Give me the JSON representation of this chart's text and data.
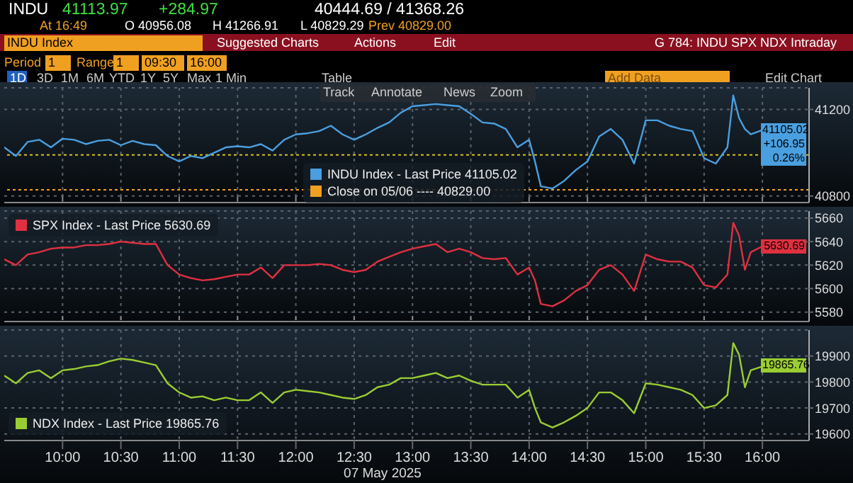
{
  "chart_data": [
    {
      "type": "line",
      "annotations": [
        "INDU",
        "41113.97",
        "+284.97",
        "40444.69 / 41368.26",
        "At 16:49",
        "O 40956.08",
        "H 41266.91",
        "L 40829.29",
        "Prev 40829.00",
        "INDU Index",
        "Suggested Charts",
        "Actions",
        "Edit",
        "G 784: INDU SPX NDX Intraday",
        "Period",
        "1",
        "Range",
        "1",
        "09:30",
        "16:00",
        "1D",
        "3D",
        "1M",
        "6M",
        "YTD",
        "1Y",
        "5Y",
        "Max",
        "1 Min",
        "Table",
        "Add Data",
        "Edit Chart",
        "Track",
        "Annotate",
        "News",
        "Zoom",
        "41105.02",
        "+106.95",
        "0.26%"
      ],
      "x": [
        9.5,
        9.6,
        9.7,
        9.8,
        9.9,
        10,
        10.1,
        10.2,
        10.3,
        10.4,
        10.5,
        10.6,
        10.7,
        10.8,
        10.9,
        11,
        11.1,
        11.2,
        11.3,
        11.4,
        11.5,
        11.6,
        11.7,
        11.8,
        11.9,
        12,
        12.1,
        12.2,
        12.3,
        12.4,
        12.5,
        12.6,
        12.7,
        12.8,
        12.9,
        13,
        13.1,
        13.2,
        13.3,
        13.4,
        13.5,
        13.6,
        13.7,
        13.8,
        13.9,
        14,
        14.05,
        14.1,
        14.2,
        14.3,
        14.4,
        14.5,
        14.6,
        14.7,
        14.8,
        14.9,
        15,
        15.1,
        15.2,
        15.3,
        15.4,
        15.5,
        15.6,
        15.7,
        15.75,
        15.8,
        15.85,
        15.9,
        16
      ],
      "series": [
        {
          "name": "INDU Index - Last Price 41105.02",
          "color": "#4a9fe0",
          "values": [
            41025,
            40985,
            41050,
            41060,
            41025,
            41065,
            41060,
            41040,
            41055,
            41060,
            41035,
            41055,
            41040,
            41035,
            40985,
            40960,
            40985,
            40975,
            41000,
            41025,
            41030,
            41025,
            41040,
            41010,
            41060,
            41085,
            41090,
            41100,
            41125,
            41085,
            41060,
            41085,
            41115,
            41140,
            41185,
            41215,
            41220,
            41225,
            41220,
            41215,
            41180,
            41140,
            41135,
            41110,
            41025,
            41060,
            40960,
            40845,
            40835,
            40870,
            40920,
            40960,
            41075,
            41110,
            41060,
            40950,
            41150,
            41150,
            41125,
            41110,
            41100,
            40975,
            40950,
            41025,
            41265,
            41160,
            41110,
            41085,
            41105
          ]
        }
      ],
      "xlim": [
        9.5,
        16.4
      ],
      "xticks": [
        {
          "value": 10,
          "label": null
        },
        {
          "value": 10.5,
          "label": null
        },
        {
          "value": 11,
          "label": null
        },
        {
          "value": 11.5,
          "label": null
        },
        {
          "value": 12,
          "label": null
        },
        {
          "value": 12.5,
          "label": null
        },
        {
          "value": 13,
          "label": null
        },
        {
          "value": 13.5,
          "label": null
        },
        {
          "value": 14,
          "label": null
        },
        {
          "value": 14.5,
          "label": null
        },
        {
          "value": 15,
          "label": null
        },
        {
          "value": 15.5,
          "label": null
        },
        {
          "value": 16,
          "label": null
        }
      ],
      "ylim": [
        40770,
        41300
      ],
      "yticks": [
        40800,
        41200
      ],
      "tick_labels": "y",
      "grid": true,
      "legend": "bottom",
      "ref_lines": [
        {
          "axis": "y",
          "value": 40990,
          "color": "#d8c020",
          "line_style": "dotted"
        },
        {
          "axis": "y",
          "value": 40829,
          "color": "#f0a020",
          "line_style": "dotted",
          "label": "Close on 05/06 ---- 40829.00"
        }
      ]
    },
    {
      "type": "line",
      "annotations": [
        "5630.69"
      ],
      "x": [
        9.5,
        9.6,
        9.7,
        9.8,
        9.9,
        10,
        10.1,
        10.2,
        10.3,
        10.4,
        10.5,
        10.6,
        10.7,
        10.8,
        10.9,
        11,
        11.1,
        11.2,
        11.3,
        11.4,
        11.5,
        11.6,
        11.7,
        11.8,
        11.9,
        12,
        12.1,
        12.2,
        12.3,
        12.4,
        12.5,
        12.6,
        12.7,
        12.8,
        12.9,
        13,
        13.1,
        13.2,
        13.3,
        13.4,
        13.5,
        13.6,
        13.7,
        13.8,
        13.9,
        14,
        14.05,
        14.1,
        14.2,
        14.3,
        14.4,
        14.5,
        14.6,
        14.7,
        14.8,
        14.9,
        15,
        15.1,
        15.2,
        15.3,
        15.4,
        15.5,
        15.6,
        15.7,
        15.75,
        15.8,
        15.85,
        15.9,
        16
      ],
      "series": [
        {
          "name": "SPX Index - Last Price 5630.69",
          "color": "#e03040",
          "values": [
            5625,
            5620,
            5629,
            5631,
            5634,
            5635,
            5635,
            5637,
            5637,
            5638,
            5640,
            5639,
            5638,
            5638,
            5620,
            5612,
            5609,
            5607,
            5608,
            5610,
            5612,
            5612,
            5618,
            5609,
            5620,
            5620,
            5620,
            5621,
            5620,
            5616,
            5614,
            5616,
            5623,
            5627,
            5631,
            5634,
            5636,
            5638,
            5631,
            5634,
            5631,
            5626,
            5625,
            5626,
            5612,
            5618,
            5607,
            5587,
            5585,
            5590,
            5598,
            5603,
            5616,
            5620,
            5612,
            5598,
            5629,
            5625,
            5623,
            5623,
            5618,
            5603,
            5601,
            5612,
            5656,
            5645,
            5616,
            5631,
            5636
          ]
        }
      ],
      "xlim": [
        9.5,
        16.4
      ],
      "xticks": [
        {
          "value": 10,
          "label": null
        },
        {
          "value": 10.5,
          "label": null
        },
        {
          "value": 11,
          "label": null
        },
        {
          "value": 11.5,
          "label": null
        },
        {
          "value": 12,
          "label": null
        },
        {
          "value": 12.5,
          "label": null
        },
        {
          "value": 13,
          "label": null
        },
        {
          "value": 13.5,
          "label": null
        },
        {
          "value": 14,
          "label": null
        },
        {
          "value": 14.5,
          "label": null
        },
        {
          "value": 15,
          "label": null
        },
        {
          "value": 15.5,
          "label": null
        },
        {
          "value": 16,
          "label": null
        }
      ],
      "ylim": [
        5572,
        5666
      ],
      "yticks": [
        5580,
        5600,
        5620,
        5640,
        5660
      ],
      "tick_labels": "y",
      "grid": true,
      "legend": "top left"
    },
    {
      "type": "line",
      "xlabel": "07 May 2025",
      "annotations": [
        "19865.76"
      ],
      "x": [
        9.5,
        9.6,
        9.7,
        9.8,
        9.9,
        10,
        10.1,
        10.2,
        10.3,
        10.4,
        10.5,
        10.6,
        10.7,
        10.8,
        10.9,
        11,
        11.1,
        11.2,
        11.3,
        11.4,
        11.5,
        11.6,
        11.7,
        11.8,
        11.9,
        12,
        12.1,
        12.2,
        12.3,
        12.4,
        12.5,
        12.6,
        12.7,
        12.8,
        12.9,
        13,
        13.1,
        13.2,
        13.3,
        13.4,
        13.5,
        13.6,
        13.7,
        13.8,
        13.9,
        14,
        14.05,
        14.1,
        14.2,
        14.3,
        14.4,
        14.5,
        14.6,
        14.7,
        14.8,
        14.9,
        15,
        15.1,
        15.2,
        15.3,
        15.4,
        15.5,
        15.6,
        15.7,
        15.75,
        15.8,
        15.85,
        15.9,
        16
      ],
      "series": [
        {
          "name": "NDX Index - Last Price 19865.76",
          "color": "#9acd32",
          "values": [
            19825,
            19795,
            19835,
            19845,
            19815,
            19845,
            19850,
            19860,
            19865,
            19880,
            19890,
            19885,
            19875,
            19865,
            19795,
            19760,
            19740,
            19745,
            19730,
            19740,
            19730,
            19730,
            19760,
            19720,
            19760,
            19770,
            19765,
            19760,
            19750,
            19740,
            19735,
            19750,
            19780,
            19790,
            19815,
            19815,
            19825,
            19835,
            19815,
            19825,
            19805,
            19790,
            19790,
            19790,
            19740,
            19770,
            19700,
            19645,
            19625,
            19645,
            19670,
            19700,
            19760,
            19760,
            19730,
            19680,
            19795,
            19790,
            19780,
            19770,
            19750,
            19700,
            19710,
            19750,
            19950,
            19905,
            19780,
            19845,
            19860
          ]
        }
      ],
      "xlim": [
        9.5,
        16.4
      ],
      "xticks": [
        {
          "value": 10,
          "label": "10:00"
        },
        {
          "value": 10.5,
          "label": "10:30"
        },
        {
          "value": 11,
          "label": "11:00"
        },
        {
          "value": 11.5,
          "label": "11:30"
        },
        {
          "value": 12,
          "label": "12:00"
        },
        {
          "value": 12.5,
          "label": "12:30"
        },
        {
          "value": 13,
          "label": "13:00"
        },
        {
          "value": 13.5,
          "label": "13:30"
        },
        {
          "value": 14,
          "label": "14:00"
        },
        {
          "value": 14.5,
          "label": "14:30"
        },
        {
          "value": 15,
          "label": "15:00"
        },
        {
          "value": 15.5,
          "label": "15:30"
        },
        {
          "value": 16,
          "label": "16:00"
        }
      ],
      "ylim": [
        19575,
        20000
      ],
      "yticks": [
        19600,
        19700,
        19800,
        19900
      ],
      "grid": true,
      "legend": "bottom left"
    }
  ]
}
